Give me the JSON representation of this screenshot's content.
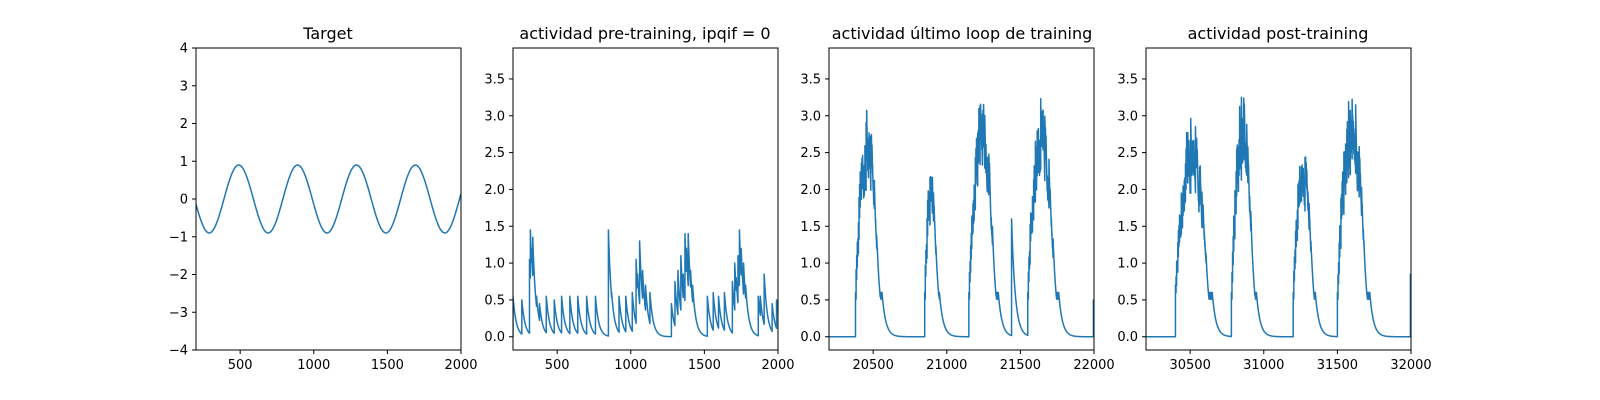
{
  "figure": {
    "background": "#ffffff",
    "line_color": "#1f77b4"
  },
  "chart_data": [
    {
      "type": "line",
      "title": "Target",
      "xlabel": "",
      "ylabel": "",
      "xlim": [
        200,
        2000
      ],
      "ylim": [
        -4,
        4
      ],
      "xticks": [
        500,
        1000,
        1500,
        2000
      ],
      "yticks": [
        -4,
        -3,
        -2,
        -1,
        0,
        1,
        2,
        3,
        4
      ],
      "grid": false,
      "series": [
        {
          "kind": "sine",
          "amplitude": 0.9,
          "period": 400,
          "peak_at": 490,
          "x_start": 200,
          "x_end": 2000
        }
      ]
    },
    {
      "type": "line",
      "title": "actividad pre-training, ipqif = 0",
      "xlabel": "",
      "ylabel": "",
      "xlim": [
        200,
        2000
      ],
      "ylim": [
        -0.18,
        3.92
      ],
      "xticks": [
        500,
        1000,
        1500,
        2000
      ],
      "yticks": [
        0.0,
        0.5,
        1.0,
        1.5,
        2.0,
        2.5,
        3.0,
        3.5
      ],
      "grid": false,
      "series": [
        {
          "kind": "spikes",
          "x_start": 200,
          "x_end": 2000,
          "events": [
            [
              200,
              0.55
            ],
            [
              260,
              0.5
            ],
            [
              312,
              1.05
            ],
            [
              318,
              1.45
            ],
            [
              326,
              1.2
            ],
            [
              334,
              1.35
            ],
            [
              345,
              0.75
            ],
            [
              360,
              0.55
            ],
            [
              380,
              0.45
            ],
            [
              425,
              0.55
            ],
            [
              480,
              0.5
            ],
            [
              530,
              0.55
            ],
            [
              585,
              0.55
            ],
            [
              640,
              0.55
            ],
            [
              700,
              0.55
            ],
            [
              760,
              0.55
            ],
            [
              848,
              1.45
            ],
            [
              870,
              0.6
            ],
            [
              920,
              0.55
            ],
            [
              965,
              0.55
            ],
            [
              1010,
              0.6
            ],
            [
              1035,
              1.05
            ],
            [
              1045,
              0.85
            ],
            [
              1060,
              1.3
            ],
            [
              1080,
              0.9
            ],
            [
              1100,
              0.7
            ],
            [
              1130,
              0.6
            ],
            [
              1275,
              0.45
            ],
            [
              1300,
              0.75
            ],
            [
              1320,
              0.9
            ],
            [
              1340,
              1.1
            ],
            [
              1355,
              0.85
            ],
            [
              1368,
              1.4
            ],
            [
              1378,
              1.2
            ],
            [
              1390,
              1.4
            ],
            [
              1405,
              0.9
            ],
            [
              1420,
              0.7
            ],
            [
              1520,
              0.55
            ],
            [
              1560,
              0.6
            ],
            [
              1595,
              0.55
            ],
            [
              1635,
              0.6
            ],
            [
              1690,
              0.75
            ],
            [
              1705,
              1.0
            ],
            [
              1716,
              0.8
            ],
            [
              1727,
              1.1
            ],
            [
              1738,
              1.45
            ],
            [
              1750,
              1.2
            ],
            [
              1765,
              1.0
            ],
            [
              1780,
              0.7
            ],
            [
              1865,
              0.55
            ],
            [
              1880,
              0.55
            ],
            [
              1905,
              0.85
            ],
            [
              1960,
              0.45
            ],
            [
              1990,
              0.5
            ]
          ]
        }
      ]
    },
    {
      "type": "line",
      "title": "actividad último loop de training",
      "xlabel": "",
      "ylabel": "",
      "xlim": [
        20200,
        22000
      ],
      "ylim": [
        -0.18,
        3.92
      ],
      "xticks": [
        20500,
        21000,
        21500,
        22000
      ],
      "yticks": [
        0.0,
        0.5,
        1.0,
        1.5,
        2.0,
        2.5,
        3.0,
        3.5
      ],
      "grid": false,
      "series": [
        {
          "kind": "bursts",
          "x_start": 20200,
          "x_end": 22000,
          "bursts": [
            {
              "start": 20380,
              "end": 20560,
              "peak": 3.1
            },
            {
              "start": 20850,
              "end": 20950,
              "peak": 2.35
            },
            {
              "start": 21150,
              "end": 21350,
              "peak": 3.35
            },
            {
              "start": 21550,
              "end": 21760,
              "peak": 3.25
            }
          ],
          "tail_spikes": [
            [
              20380,
              0.5
            ],
            [
              21440,
              1.6
            ],
            [
              21995,
              0.5
            ]
          ]
        }
      ]
    },
    {
      "type": "line",
      "title": "actividad post-training",
      "xlabel": "",
      "ylabel": "",
      "xlim": [
        30200,
        32000
      ],
      "ylim": [
        -0.18,
        3.92
      ],
      "xticks": [
        30500,
        31000,
        31500,
        32000
      ],
      "yticks": [
        0.0,
        0.5,
        1.0,
        1.5,
        2.0,
        2.5,
        3.0,
        3.5
      ],
      "grid": false,
      "series": [
        {
          "kind": "bursts",
          "x_start": 30200,
          "x_end": 32000,
          "bursts": [
            {
              "start": 30400,
              "end": 30650,
              "peak": 3.0
            },
            {
              "start": 30780,
              "end": 30950,
              "peak": 3.3
            },
            {
              "start": 31200,
              "end": 31350,
              "peak": 2.6
            },
            {
              "start": 31500,
              "end": 31720,
              "peak": 3.4
            }
          ],
          "tail_spikes": [
            [
              30400,
              0.7
            ],
            [
              31230,
              1.0
            ],
            [
              31530,
              0.6
            ],
            [
              31995,
              0.85
            ]
          ]
        }
      ]
    }
  ]
}
